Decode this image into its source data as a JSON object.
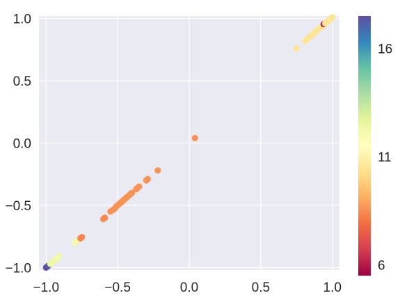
{
  "chart_data": {
    "type": "scatter",
    "title": "",
    "xlabel": "",
    "ylabel": "",
    "xlim": [
      -1.05,
      1.05
    ],
    "ylim": [
      -1.02,
      1.02
    ],
    "xticks": [
      -1.0,
      -0.5,
      0.0,
      0.5,
      1.0
    ],
    "xtick_labels": [
      "−1.0",
      "−0.5",
      "0.0",
      "0.5",
      "1.0"
    ],
    "yticks": [
      -1.0,
      -0.5,
      0.0,
      0.5,
      1.0
    ],
    "ytick_labels": [
      "−1.0",
      "−0.5",
      "0.0",
      "0.5",
      "1.0"
    ],
    "grid": true,
    "background": "#eaeaf2",
    "colormap": "Spectral",
    "color_range": [
      5.5,
      17.5
    ],
    "colorbar": {
      "ticks": [
        6,
        11,
        16
      ],
      "tick_labels": [
        "6",
        "11",
        "16"
      ]
    },
    "points": [
      {
        "x": -1.0,
        "y": -1.0,
        "c": 17.5
      },
      {
        "x": -0.99,
        "y": -0.99,
        "c": 17.5
      },
      {
        "x": -0.985,
        "y": -0.985,
        "c": 17.2
      },
      {
        "x": -0.97,
        "y": -0.97,
        "c": 12.3
      },
      {
        "x": -0.955,
        "y": -0.955,
        "c": 12.2
      },
      {
        "x": -0.94,
        "y": -0.94,
        "c": 12.3
      },
      {
        "x": -0.925,
        "y": -0.925,
        "c": 12.2
      },
      {
        "x": -0.91,
        "y": -0.91,
        "c": 12.2
      },
      {
        "x": -0.8,
        "y": -0.8,
        "c": 12.0
      },
      {
        "x": -0.79,
        "y": -0.79,
        "c": 12.1
      },
      {
        "x": -0.76,
        "y": -0.765,
        "c": 8.3
      },
      {
        "x": -0.75,
        "y": -0.755,
        "c": 8.4
      },
      {
        "x": -0.6,
        "y": -0.61,
        "c": 8.5
      },
      {
        "x": -0.59,
        "y": -0.6,
        "c": 8.4
      },
      {
        "x": -0.55,
        "y": -0.55,
        "c": 8.6
      },
      {
        "x": -0.53,
        "y": -0.535,
        "c": 8.6
      },
      {
        "x": -0.52,
        "y": -0.525,
        "c": 8.6
      },
      {
        "x": -0.51,
        "y": -0.51,
        "c": 8.6
      },
      {
        "x": -0.5,
        "y": -0.5,
        "c": 8.6
      },
      {
        "x": -0.49,
        "y": -0.49,
        "c": 8.6
      },
      {
        "x": -0.48,
        "y": -0.48,
        "c": 8.6
      },
      {
        "x": -0.47,
        "y": -0.47,
        "c": 8.6
      },
      {
        "x": -0.46,
        "y": -0.46,
        "c": 8.6
      },
      {
        "x": -0.45,
        "y": -0.45,
        "c": 8.6
      },
      {
        "x": -0.44,
        "y": -0.44,
        "c": 8.6
      },
      {
        "x": -0.43,
        "y": -0.43,
        "c": 8.6
      },
      {
        "x": -0.42,
        "y": -0.42,
        "c": 8.6
      },
      {
        "x": -0.41,
        "y": -0.41,
        "c": 8.6
      },
      {
        "x": -0.4,
        "y": -0.4,
        "c": 8.6
      },
      {
        "x": -0.37,
        "y": -0.37,
        "c": 8.6
      },
      {
        "x": -0.36,
        "y": -0.36,
        "c": 8.6
      },
      {
        "x": -0.35,
        "y": -0.35,
        "c": 8.6
      },
      {
        "x": -0.3,
        "y": -0.3,
        "c": 8.6
      },
      {
        "x": -0.29,
        "y": -0.29,
        "c": 8.6
      },
      {
        "x": -0.22,
        "y": -0.22,
        "c": 8.6
      },
      {
        "x": 0.04,
        "y": 0.04,
        "c": 8.6
      },
      {
        "x": 0.75,
        "y": 0.76,
        "c": 10.5
      },
      {
        "x": 0.81,
        "y": 0.82,
        "c": 10.6
      },
      {
        "x": 0.83,
        "y": 0.84,
        "c": 10.5
      },
      {
        "x": 0.85,
        "y": 0.86,
        "c": 10.5
      },
      {
        "x": 0.87,
        "y": 0.88,
        "c": 10.5
      },
      {
        "x": 0.88,
        "y": 0.89,
        "c": 10.5
      },
      {
        "x": 0.89,
        "y": 0.9,
        "c": 10.6
      },
      {
        "x": 0.9,
        "y": 0.91,
        "c": 10.5
      },
      {
        "x": 0.92,
        "y": 0.93,
        "c": 10.5
      },
      {
        "x": 0.93,
        "y": 0.94,
        "c": 10.5
      },
      {
        "x": 0.94,
        "y": 0.955,
        "c": 6.0
      },
      {
        "x": 0.95,
        "y": 0.96,
        "c": 10.5
      },
      {
        "x": 0.96,
        "y": 0.97,
        "c": 10.5
      },
      {
        "x": 0.97,
        "y": 0.98,
        "c": 10.5
      },
      {
        "x": 0.98,
        "y": 0.99,
        "c": 10.5
      },
      {
        "x": 0.99,
        "y": 1.0,
        "c": 10.6
      },
      {
        "x": 1.0,
        "y": 1.01,
        "c": 10.5
      }
    ]
  }
}
